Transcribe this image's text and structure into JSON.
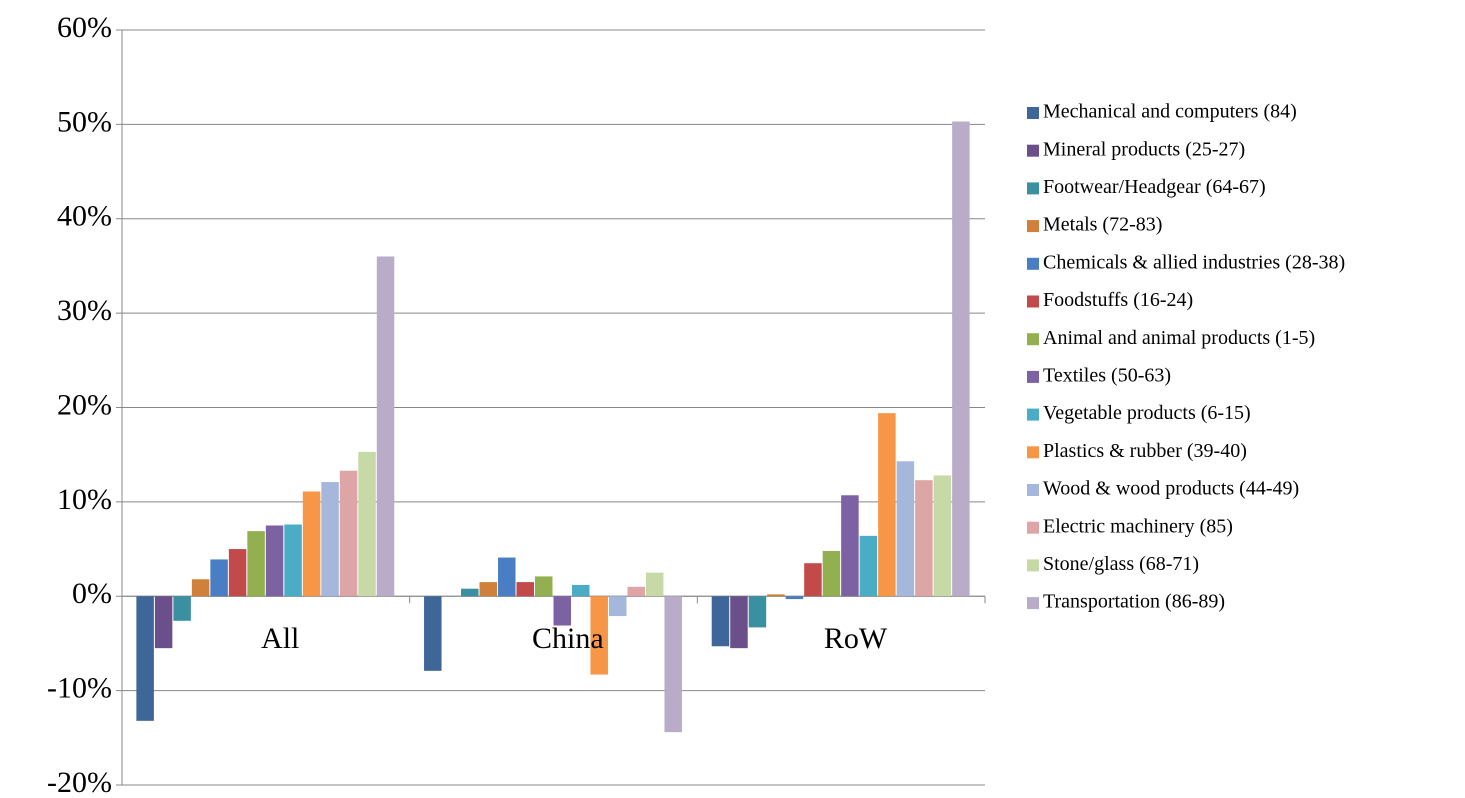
{
  "chart_data": {
    "type": "bar",
    "categories": [
      "All",
      "China",
      "RoW"
    ],
    "ylim": [
      -20,
      60
    ],
    "yticks": [
      {
        "value": -20,
        "label": "-20%"
      },
      {
        "value": -10,
        "label": "-10%"
      },
      {
        "value": 0,
        "label": "0%"
      },
      {
        "value": 10,
        "label": "10%"
      },
      {
        "value": 20,
        "label": "20%"
      },
      {
        "value": 30,
        "label": "30%"
      },
      {
        "value": 40,
        "label": "40%"
      },
      {
        "value": 50,
        "label": "50%"
      },
      {
        "value": 60,
        "label": "60%"
      }
    ],
    "grid": true,
    "legend": "right",
    "series": [
      {
        "name": "Mechanical and computers (84)",
        "color": "#3f6698",
        "values": [
          -13.2,
          -7.9,
          -5.3
        ]
      },
      {
        "name": "Mineral products (25-27)",
        "color": "#6b4f8a",
        "values": [
          -5.5,
          0,
          -5.5
        ]
      },
      {
        "name": "Footwear/Headgear (64-67)",
        "color": "#3a8fa0",
        "values": [
          -2.6,
          0.8,
          -3.3
        ]
      },
      {
        "name": "Metals (72-83)",
        "color": "#d0803a",
        "values": [
          1.8,
          1.5,
          0.2
        ]
      },
      {
        "name": "Chemicals & allied industries (28-38)",
        "color": "#4a7ec4",
        "values": [
          3.9,
          4.1,
          -0.3
        ]
      },
      {
        "name": "Foodstuffs (16-24)",
        "color": "#c24a4a",
        "values": [
          5.0,
          1.5,
          3.5
        ]
      },
      {
        "name": "Animal and animal products (1-5)",
        "color": "#92b050",
        "values": [
          6.9,
          2.1,
          4.8
        ]
      },
      {
        "name": "Textiles (50-63)",
        "color": "#7d62a3",
        "values": [
          7.5,
          -3.1,
          10.7
        ]
      },
      {
        "name": "Vegetable products (6-15)",
        "color": "#4bacc6",
        "values": [
          7.6,
          1.2,
          6.4
        ]
      },
      {
        "name": "Plastics & rubber (39-40)",
        "color": "#f79646",
        "values": [
          11.1,
          -8.3,
          19.4
        ]
      },
      {
        "name": "Wood & wood products (44-49)",
        "color": "#a5b8dc",
        "values": [
          12.1,
          -2.1,
          14.3
        ]
      },
      {
        "name": "Electric machinery (85)",
        "color": "#dda5a5",
        "values": [
          13.3,
          1.0,
          12.3
        ]
      },
      {
        "name": "Stone/glass (68-71)",
        "color": "#c7d9a7",
        "values": [
          15.3,
          2.5,
          12.8
        ]
      },
      {
        "name": "Transportation (86-89)",
        "color": "#b9acc9",
        "values": [
          36.0,
          -14.4,
          50.3
        ]
      }
    ]
  }
}
